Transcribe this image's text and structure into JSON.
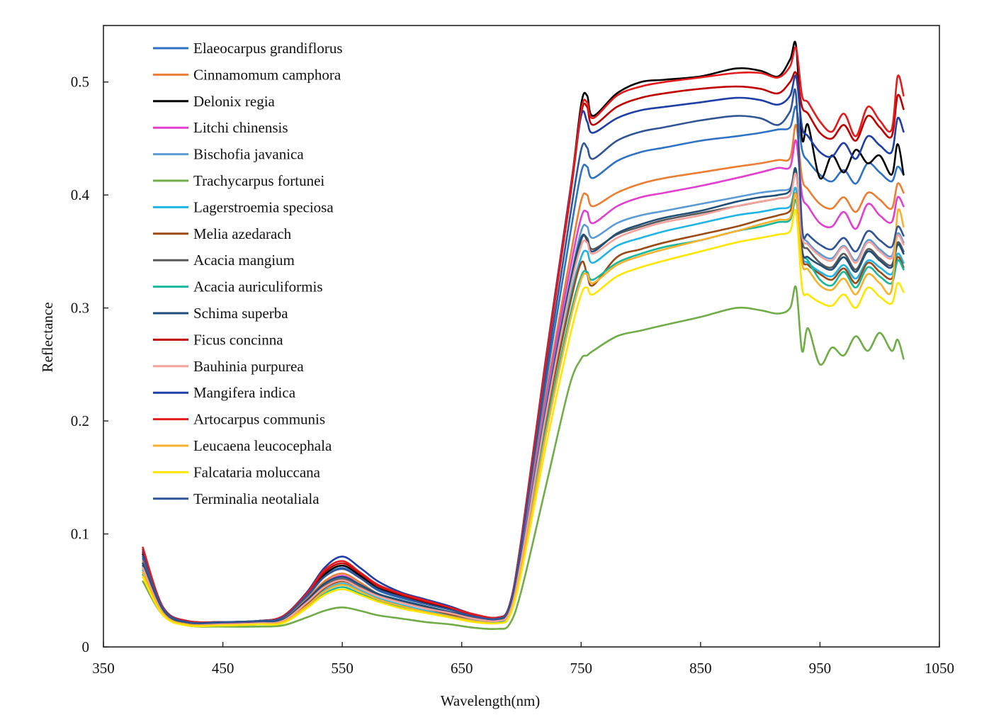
{
  "chart_data": {
    "type": "line",
    "title": "",
    "xlabel": "Wavelength(nm)",
    "ylabel": "Reflectance",
    "xlim": [
      350,
      1050
    ],
    "ylim": [
      0,
      0.55
    ],
    "xticks": [
      350,
      450,
      550,
      650,
      750,
      850,
      950,
      1050
    ],
    "yticks": [
      0,
      0.1,
      0.2,
      0.3,
      0.4,
      0.5
    ],
    "xtick_labels": [
      "350",
      "450",
      "550",
      "650",
      "750",
      "850",
      "950",
      "1050"
    ],
    "ytick_labels": [
      "0",
      "0.1",
      "0.2",
      "0.3",
      "0.4",
      "0.5"
    ],
    "grid": false,
    "legend": "top-left",
    "x": [
      383,
      400,
      420,
      450,
      480,
      500,
      520,
      535,
      550,
      565,
      580,
      600,
      620,
      640,
      660,
      680,
      690,
      700,
      720,
      740,
      750,
      755,
      760,
      780,
      800,
      820,
      850,
      880,
      900,
      915,
      925,
      930,
      935,
      940,
      950,
      960,
      970,
      980,
      990,
      1000,
      1010,
      1015,
      1020
    ],
    "series": [
      {
        "name": "Elaeocarpus grandiflorus",
        "color": "#2e72c6",
        "values": [
          0.078,
          0.033,
          0.022,
          0.022,
          0.023,
          0.026,
          0.044,
          0.062,
          0.07,
          0.061,
          0.05,
          0.043,
          0.038,
          0.033,
          0.027,
          0.025,
          0.035,
          0.09,
          0.23,
          0.36,
          0.42,
          0.425,
          0.415,
          0.43,
          0.438,
          0.442,
          0.448,
          0.452,
          0.455,
          0.458,
          0.46,
          0.478,
          0.44,
          0.43,
          0.418,
          0.412,
          0.422,
          0.41,
          0.428,
          0.42,
          0.412,
          0.425,
          0.418
        ]
      },
      {
        "name": "Cinnamomum camphora",
        "color": "#ed7d31",
        "values": [
          0.076,
          0.032,
          0.021,
          0.021,
          0.022,
          0.025,
          0.042,
          0.058,
          0.065,
          0.057,
          0.047,
          0.04,
          0.035,
          0.031,
          0.026,
          0.024,
          0.033,
          0.085,
          0.22,
          0.34,
          0.395,
          0.4,
          0.39,
          0.402,
          0.41,
          0.415,
          0.42,
          0.425,
          0.428,
          0.431,
          0.433,
          0.462,
          0.415,
          0.405,
          0.392,
          0.388,
          0.398,
          0.385,
          0.402,
          0.396,
          0.388,
          0.41,
          0.402
        ]
      },
      {
        "name": "Delonix regia",
        "color": "#000000",
        "values": [
          0.082,
          0.034,
          0.023,
          0.022,
          0.023,
          0.027,
          0.046,
          0.064,
          0.072,
          0.063,
          0.052,
          0.045,
          0.039,
          0.034,
          0.028,
          0.026,
          0.036,
          0.095,
          0.25,
          0.395,
          0.48,
          0.488,
          0.47,
          0.49,
          0.5,
          0.502,
          0.505,
          0.512,
          0.51,
          0.505,
          0.52,
          0.532,
          0.45,
          0.462,
          0.415,
          0.435,
          0.42,
          0.44,
          0.428,
          0.435,
          0.418,
          0.445,
          0.418
        ]
      },
      {
        "name": "Litchi chinensis",
        "color": "#e23fd0",
        "values": [
          0.074,
          0.031,
          0.021,
          0.021,
          0.022,
          0.024,
          0.04,
          0.056,
          0.063,
          0.055,
          0.046,
          0.039,
          0.034,
          0.03,
          0.026,
          0.024,
          0.032,
          0.082,
          0.215,
          0.33,
          0.38,
          0.385,
          0.375,
          0.39,
          0.398,
          0.402,
          0.408,
          0.415,
          0.42,
          0.424,
          0.425,
          0.448,
          0.4,
          0.39,
          0.375,
          0.372,
          0.385,
          0.37,
          0.392,
          0.382,
          0.376,
          0.398,
          0.39
        ]
      },
      {
        "name": "Bischofia javanica",
        "color": "#5b9bd5",
        "values": [
          0.072,
          0.031,
          0.021,
          0.021,
          0.022,
          0.024,
          0.04,
          0.055,
          0.061,
          0.054,
          0.046,
          0.04,
          0.035,
          0.031,
          0.026,
          0.024,
          0.032,
          0.08,
          0.21,
          0.32,
          0.368,
          0.372,
          0.362,
          0.375,
          0.382,
          0.386,
          0.392,
          0.398,
          0.402,
          0.404,
          0.406,
          0.42,
          0.368,
          0.358,
          0.348,
          0.344,
          0.355,
          0.342,
          0.36,
          0.352,
          0.346,
          0.366,
          0.358
        ]
      },
      {
        "name": "Trachycarpus  fortunei",
        "color": "#70ad47",
        "values": [
          0.058,
          0.028,
          0.019,
          0.018,
          0.018,
          0.019,
          0.026,
          0.032,
          0.035,
          0.032,
          0.028,
          0.025,
          0.022,
          0.02,
          0.017,
          0.016,
          0.02,
          0.05,
          0.14,
          0.23,
          0.255,
          0.258,
          0.262,
          0.275,
          0.28,
          0.285,
          0.292,
          0.3,
          0.298,
          0.295,
          0.3,
          0.318,
          0.262,
          0.282,
          0.25,
          0.265,
          0.258,
          0.275,
          0.262,
          0.278,
          0.262,
          0.272,
          0.255
        ]
      },
      {
        "name": "Lagerstroemia speciosa",
        "color": "#1eb4e6",
        "values": [
          0.068,
          0.03,
          0.02,
          0.02,
          0.021,
          0.023,
          0.037,
          0.05,
          0.056,
          0.05,
          0.043,
          0.037,
          0.032,
          0.028,
          0.024,
          0.022,
          0.03,
          0.075,
          0.2,
          0.305,
          0.345,
          0.35,
          0.34,
          0.355,
          0.362,
          0.368,
          0.375,
          0.382,
          0.385,
          0.388,
          0.39,
          0.405,
          0.348,
          0.34,
          0.332,
          0.328,
          0.338,
          0.326,
          0.342,
          0.336,
          0.33,
          0.348,
          0.34
        ]
      },
      {
        "name": "Melia azedarach",
        "color": "#9c4a14",
        "values": [
          0.07,
          0.03,
          0.02,
          0.02,
          0.021,
          0.023,
          0.038,
          0.052,
          0.058,
          0.052,
          0.045,
          0.039,
          0.034,
          0.029,
          0.025,
          0.023,
          0.031,
          0.076,
          0.198,
          0.3,
          0.34,
          0.33,
          0.32,
          0.345,
          0.352,
          0.358,
          0.365,
          0.372,
          0.378,
          0.382,
          0.386,
          0.4,
          0.345,
          0.338,
          0.33,
          0.325,
          0.335,
          0.322,
          0.34,
          0.332,
          0.326,
          0.345,
          0.336
        ]
      },
      {
        "name": "Acacia mangium",
        "color": "#595959",
        "values": [
          0.072,
          0.031,
          0.021,
          0.021,
          0.022,
          0.024,
          0.04,
          0.054,
          0.06,
          0.053,
          0.046,
          0.04,
          0.035,
          0.03,
          0.026,
          0.024,
          0.032,
          0.078,
          0.205,
          0.315,
          0.36,
          0.362,
          0.352,
          0.365,
          0.372,
          0.378,
          0.384,
          0.39,
          0.394,
          0.397,
          0.4,
          0.42,
          0.36,
          0.352,
          0.34,
          0.336,
          0.348,
          0.334,
          0.352,
          0.344,
          0.338,
          0.358,
          0.35
        ]
      },
      {
        "name": "Acacia auriculiformis",
        "color": "#17b89c",
        "values": [
          0.064,
          0.029,
          0.02,
          0.019,
          0.02,
          0.022,
          0.035,
          0.047,
          0.053,
          0.047,
          0.041,
          0.035,
          0.031,
          0.027,
          0.023,
          0.022,
          0.029,
          0.072,
          0.19,
          0.29,
          0.328,
          0.332,
          0.325,
          0.34,
          0.348,
          0.354,
          0.36,
          0.368,
          0.372,
          0.376,
          0.378,
          0.395,
          0.35,
          0.342,
          0.325,
          0.32,
          0.332,
          0.318,
          0.336,
          0.328,
          0.322,
          0.342,
          0.334
        ]
      },
      {
        "name": "Schima superba",
        "color": "#1f4e79",
        "values": [
          0.074,
          0.031,
          0.021,
          0.021,
          0.022,
          0.024,
          0.041,
          0.056,
          0.062,
          0.055,
          0.047,
          0.041,
          0.036,
          0.031,
          0.026,
          0.024,
          0.032,
          0.079,
          0.206,
          0.318,
          0.362,
          0.36,
          0.35,
          0.366,
          0.374,
          0.38,
          0.386,
          0.394,
          0.398,
          0.4,
          0.404,
          0.422,
          0.352,
          0.345,
          0.338,
          0.334,
          0.345,
          0.332,
          0.35,
          0.342,
          0.336,
          0.356,
          0.348
        ]
      },
      {
        "name": "Ficus concinna",
        "color": "#c00000",
        "values": [
          0.084,
          0.035,
          0.023,
          0.022,
          0.023,
          0.027,
          0.046,
          0.066,
          0.074,
          0.065,
          0.054,
          0.046,
          0.04,
          0.035,
          0.028,
          0.026,
          0.036,
          0.094,
          0.248,
          0.392,
          0.472,
          0.478,
          0.462,
          0.478,
          0.486,
          0.49,
          0.494,
          0.496,
          0.494,
          0.49,
          0.5,
          0.508,
          0.478,
          0.472,
          0.455,
          0.45,
          0.462,
          0.448,
          0.47,
          0.46,
          0.452,
          0.488,
          0.476
        ]
      },
      {
        "name": "Bauhinia purpurea",
        "color": "#f4a09b",
        "values": [
          0.07,
          0.03,
          0.02,
          0.02,
          0.021,
          0.023,
          0.039,
          0.053,
          0.059,
          0.052,
          0.045,
          0.039,
          0.034,
          0.03,
          0.025,
          0.023,
          0.031,
          0.077,
          0.202,
          0.312,
          0.355,
          0.358,
          0.348,
          0.362,
          0.37,
          0.376,
          0.382,
          0.39,
          0.394,
          0.397,
          0.4,
          0.418,
          0.364,
          0.356,
          0.346,
          0.342,
          0.354,
          0.34,
          0.358,
          0.35,
          0.344,
          0.364,
          0.356
        ]
      },
      {
        "name": "Mangifera indica",
        "color": "#1e3ea8",
        "values": [
          0.086,
          0.035,
          0.023,
          0.022,
          0.023,
          0.027,
          0.048,
          0.07,
          0.08,
          0.07,
          0.058,
          0.048,
          0.042,
          0.036,
          0.029,
          0.026,
          0.037,
          0.096,
          0.252,
          0.398,
          0.47,
          0.465,
          0.455,
          0.468,
          0.475,
          0.478,
          0.482,
          0.486,
          0.484,
          0.48,
          0.488,
          0.505,
          0.46,
          0.452,
          0.438,
          0.434,
          0.446,
          0.432,
          0.452,
          0.444,
          0.438,
          0.468,
          0.456
        ]
      },
      {
        "name": "Artocarpus communis",
        "color": "#e41a1c",
        "values": [
          0.088,
          0.035,
          0.023,
          0.022,
          0.023,
          0.027,
          0.047,
          0.068,
          0.076,
          0.066,
          0.055,
          0.047,
          0.041,
          0.035,
          0.029,
          0.026,
          0.036,
          0.095,
          0.25,
          0.395,
          0.475,
          0.482,
          0.468,
          0.488,
          0.496,
          0.5,
          0.504,
          0.508,
          0.508,
          0.504,
          0.514,
          0.53,
          0.488,
          0.482,
          0.465,
          0.456,
          0.472,
          0.452,
          0.478,
          0.466,
          0.458,
          0.505,
          0.488
        ]
      },
      {
        "name": "Leucaena leucocephala",
        "color": "#f7b12d",
        "values": [
          0.066,
          0.029,
          0.02,
          0.019,
          0.02,
          0.022,
          0.036,
          0.049,
          0.055,
          0.049,
          0.042,
          0.036,
          0.031,
          0.027,
          0.023,
          0.021,
          0.028,
          0.07,
          0.185,
          0.285,
          0.325,
          0.33,
          0.322,
          0.338,
          0.346,
          0.352,
          0.36,
          0.368,
          0.374,
          0.378,
          0.38,
          0.4,
          0.34,
          0.334,
          0.32,
          0.316,
          0.326,
          0.312,
          0.33,
          0.322,
          0.316,
          0.385,
          0.372
        ]
      },
      {
        "name": "Falcataria moluccana",
        "color": "#ffe600",
        "values": [
          0.062,
          0.028,
          0.019,
          0.019,
          0.02,
          0.021,
          0.034,
          0.046,
          0.051,
          0.046,
          0.04,
          0.034,
          0.03,
          0.026,
          0.022,
          0.021,
          0.027,
          0.066,
          0.175,
          0.272,
          0.312,
          0.318,
          0.312,
          0.328,
          0.336,
          0.342,
          0.35,
          0.358,
          0.362,
          0.365,
          0.368,
          0.385,
          0.318,
          0.312,
          0.305,
          0.302,
          0.312,
          0.3,
          0.318,
          0.31,
          0.304,
          0.322,
          0.314
        ]
      },
      {
        "name": "Terminalia neotaliala",
        "color": "#2f5597",
        "values": [
          0.08,
          0.034,
          0.022,
          0.022,
          0.023,
          0.026,
          0.045,
          0.062,
          0.069,
          0.061,
          0.051,
          0.044,
          0.038,
          0.033,
          0.027,
          0.025,
          0.035,
          0.09,
          0.238,
          0.376,
          0.44,
          0.442,
          0.432,
          0.448,
          0.456,
          0.46,
          0.466,
          0.47,
          0.468,
          0.462,
          0.474,
          0.488,
          0.372,
          0.365,
          0.356,
          0.352,
          0.362,
          0.35,
          0.368,
          0.36,
          0.354,
          0.372,
          0.364
        ]
      }
    ]
  }
}
